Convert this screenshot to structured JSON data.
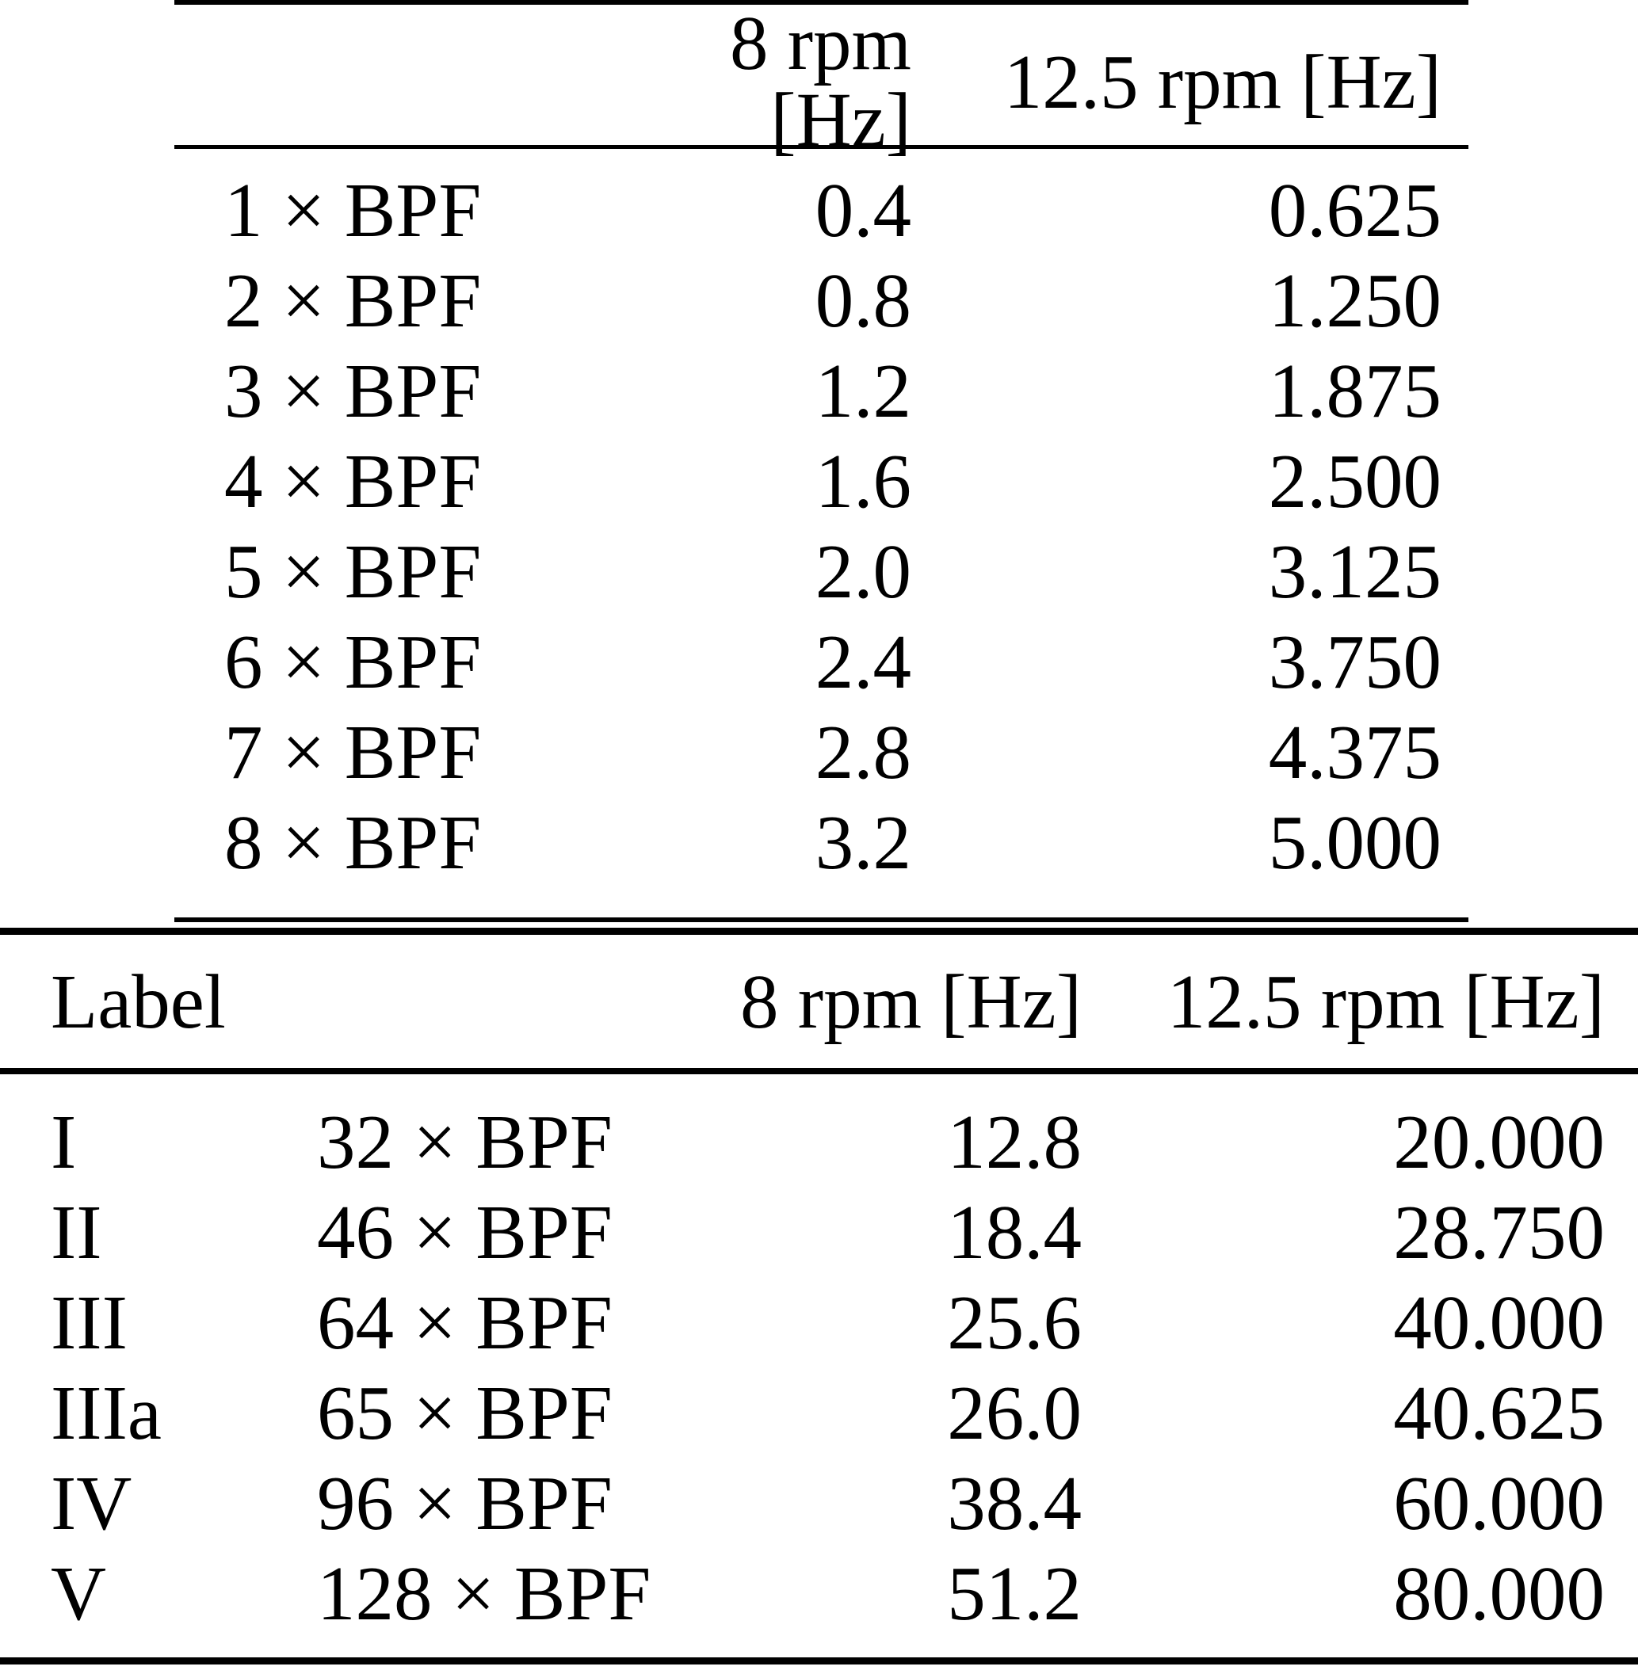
{
  "table1": {
    "col_headers": {
      "rpm8": "8 rpm [Hz]",
      "rpm125": "12.5 rpm [Hz]"
    },
    "rows": [
      {
        "harmonic": "1 × BPF",
        "rpm8": "0.4",
        "rpm125": "0.625"
      },
      {
        "harmonic": "2 × BPF",
        "rpm8": "0.8",
        "rpm125": "1.250"
      },
      {
        "harmonic": "3 × BPF",
        "rpm8": "1.2",
        "rpm125": "1.875"
      },
      {
        "harmonic": "4 × BPF",
        "rpm8": "1.6",
        "rpm125": "2.500"
      },
      {
        "harmonic": "5 × BPF",
        "rpm8": "2.0",
        "rpm125": "3.125"
      },
      {
        "harmonic": "6 × BPF",
        "rpm8": "2.4",
        "rpm125": "3.750"
      },
      {
        "harmonic": "7 × BPF",
        "rpm8": "2.8",
        "rpm125": "4.375"
      },
      {
        "harmonic": "8 × BPF",
        "rpm8": "3.2",
        "rpm125": "5.000"
      }
    ]
  },
  "table2": {
    "col_headers": {
      "label": "Label",
      "rpm8": "8 rpm [Hz]",
      "rpm125": "12.5 rpm [Hz]"
    },
    "rows": [
      {
        "label": "I",
        "harmonic": "32 × BPF",
        "rpm8": "12.8",
        "rpm125": "20.000"
      },
      {
        "label": "II",
        "harmonic": "46 × BPF",
        "rpm8": "18.4",
        "rpm125": "28.750"
      },
      {
        "label": "III",
        "harmonic": "64 × BPF",
        "rpm8": "25.6",
        "rpm125": "40.000"
      },
      {
        "label": "IIIa",
        "harmonic": "65 × BPF",
        "rpm8": "26.0",
        "rpm125": "40.625"
      },
      {
        "label": "IV",
        "harmonic": "96 × BPF",
        "rpm8": "38.4",
        "rpm125": "60.000"
      },
      {
        "label": "V",
        "harmonic": "128 × BPF",
        "rpm8": "51.2",
        "rpm125": "80.000"
      }
    ]
  }
}
